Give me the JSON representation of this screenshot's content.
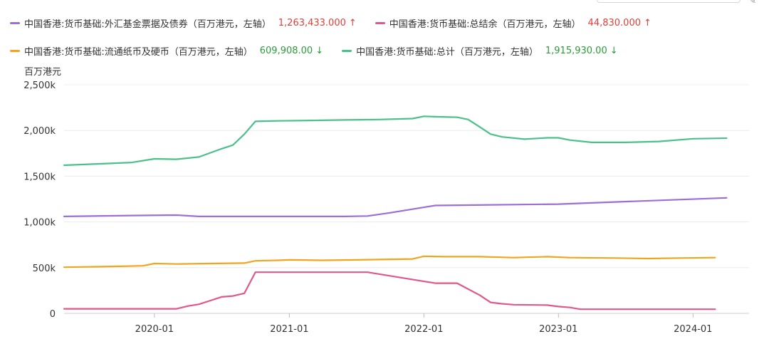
{
  "legend": {
    "items": [
      {
        "name": "中国香港:货币基础:外汇基金票据及债券（百万港元，左轴）",
        "value": "1,263,433.000",
        "arrow": "↑",
        "trend": "up",
        "color": "#9b6fd6"
      },
      {
        "name": "中国香港:货币基础:总结余（百万港元，左轴）",
        "value": "44,830.000",
        "arrow": "↑",
        "trend": "up",
        "color": "#e0588a"
      },
      {
        "name": "中国香港:货币基础:流通纸币及硬币（百万港元，左轴）",
        "value": "609,908.00",
        "arrow": "↓",
        "trend": "down",
        "color": "#f0a51e"
      },
      {
        "name": "中国香港:货币基础:总计（百万港元，左轴）",
        "value": "1,915,930.00",
        "arrow": "↓",
        "trend": "down",
        "color": "#4cc08a"
      }
    ]
  },
  "chart_data": {
    "type": "line",
    "ylabel": "百万港元",
    "ylim": [
      0,
      2500000
    ],
    "yticks": [
      {
        "value": 0,
        "label": "0"
      },
      {
        "value": 500000,
        "label": "500k"
      },
      {
        "value": 1000000,
        "label": "1,000k"
      },
      {
        "value": 1500000,
        "label": "1,500k"
      },
      {
        "value": 2000000,
        "label": "2,000k"
      },
      {
        "value": 2500000,
        "label": "2,500k"
      }
    ],
    "xlim": [
      "2019-05-01",
      "2024-06-01"
    ],
    "xticks": [
      {
        "value": "2020-01-01",
        "label": "2020-01"
      },
      {
        "value": "2021-01-01",
        "label": "2021-01"
      },
      {
        "value": "2022-01-01",
        "label": "2022-01"
      },
      {
        "value": "2023-01-01",
        "label": "2023-01"
      },
      {
        "value": "2024-01-01",
        "label": "2024-01"
      }
    ],
    "grid": true,
    "legend_position": "top",
    "series": [
      {
        "name": "中国香港:货币基础:总计（百万港元，左轴）",
        "color": "#4cc08a",
        "points": [
          [
            "2019-05-01",
            1620000
          ],
          [
            "2019-08-01",
            1635000
          ],
          [
            "2019-11-01",
            1650000
          ],
          [
            "2020-01-01",
            1690000
          ],
          [
            "2020-03-01",
            1685000
          ],
          [
            "2020-05-01",
            1710000
          ],
          [
            "2020-07-01",
            1800000
          ],
          [
            "2020-08-01",
            1840000
          ],
          [
            "2020-09-01",
            1960000
          ],
          [
            "2020-10-01",
            2100000
          ],
          [
            "2020-12-01",
            2105000
          ],
          [
            "2021-03-01",
            2110000
          ],
          [
            "2021-06-01",
            2115000
          ],
          [
            "2021-09-01",
            2120000
          ],
          [
            "2021-12-01",
            2130000
          ],
          [
            "2022-01-01",
            2155000
          ],
          [
            "2022-02-01",
            2150000
          ],
          [
            "2022-04-01",
            2145000
          ],
          [
            "2022-05-01",
            2120000
          ],
          [
            "2022-06-01",
            2040000
          ],
          [
            "2022-07-01",
            1960000
          ],
          [
            "2022-08-01",
            1930000
          ],
          [
            "2022-10-01",
            1905000
          ],
          [
            "2022-12-01",
            1920000
          ],
          [
            "2023-01-01",
            1920000
          ],
          [
            "2023-02-01",
            1895000
          ],
          [
            "2023-04-01",
            1870000
          ],
          [
            "2023-07-01",
            1870000
          ],
          [
            "2023-10-01",
            1880000
          ],
          [
            "2024-01-01",
            1910000
          ],
          [
            "2024-04-01",
            1915930
          ]
        ]
      },
      {
        "name": "中国香港:货币基础:外汇基金票据及债券（百万港元，左轴）",
        "color": "#9b6fd6",
        "points": [
          [
            "2019-05-01",
            1060000
          ],
          [
            "2019-11-01",
            1070000
          ],
          [
            "2020-03-01",
            1075000
          ],
          [
            "2020-05-01",
            1060000
          ],
          [
            "2021-06-01",
            1060000
          ],
          [
            "2021-08-01",
            1065000
          ],
          [
            "2021-10-01",
            1100000
          ],
          [
            "2022-01-01",
            1160000
          ],
          [
            "2022-02-01",
            1180000
          ],
          [
            "2023-01-01",
            1195000
          ],
          [
            "2024-04-01",
            1263433
          ]
        ]
      },
      {
        "name": "中国香港:货币基础:流通纸币及硬币（百万港元，左轴）",
        "color": "#f0a51e",
        "points": [
          [
            "2019-05-01",
            505000
          ],
          [
            "2019-10-01",
            515000
          ],
          [
            "2019-12-01",
            520000
          ],
          [
            "2020-01-01",
            545000
          ],
          [
            "2020-03-01",
            540000
          ],
          [
            "2020-06-01",
            545000
          ],
          [
            "2020-09-01",
            550000
          ],
          [
            "2020-10-01",
            575000
          ],
          [
            "2020-12-01",
            580000
          ],
          [
            "2021-01-01",
            585000
          ],
          [
            "2021-04-01",
            580000
          ],
          [
            "2021-07-01",
            585000
          ],
          [
            "2021-12-01",
            595000
          ],
          [
            "2022-01-01",
            625000
          ],
          [
            "2022-03-01",
            620000
          ],
          [
            "2022-06-01",
            620000
          ],
          [
            "2022-09-01",
            610000
          ],
          [
            "2022-12-01",
            620000
          ],
          [
            "2023-02-01",
            610000
          ],
          [
            "2023-06-01",
            605000
          ],
          [
            "2023-09-01",
            600000
          ],
          [
            "2023-12-01",
            605000
          ],
          [
            "2024-03-01",
            609908
          ]
        ]
      },
      {
        "name": "中国香港:货币基础:总结余（百万港元，左轴）",
        "color": "#e0588a",
        "points": [
          [
            "2019-05-01",
            50000
          ],
          [
            "2020-03-01",
            50000
          ],
          [
            "2020-04-01",
            80000
          ],
          [
            "2020-05-01",
            100000
          ],
          [
            "2020-06-01",
            140000
          ],
          [
            "2020-07-01",
            180000
          ],
          [
            "2020-08-01",
            190000
          ],
          [
            "2020-09-01",
            220000
          ],
          [
            "2020-10-01",
            450000
          ],
          [
            "2021-08-01",
            450000
          ],
          [
            "2022-01-01",
            350000
          ],
          [
            "2022-02-01",
            330000
          ],
          [
            "2022-04-01",
            330000
          ],
          [
            "2022-06-01",
            200000
          ],
          [
            "2022-07-01",
            120000
          ],
          [
            "2022-08-01",
            105000
          ],
          [
            "2022-09-01",
            95000
          ],
          [
            "2022-12-01",
            90000
          ],
          [
            "2023-01-01",
            75000
          ],
          [
            "2023-02-01",
            65000
          ],
          [
            "2023-03-01",
            45000
          ],
          [
            "2024-03-01",
            44830
          ]
        ]
      }
    ]
  }
}
